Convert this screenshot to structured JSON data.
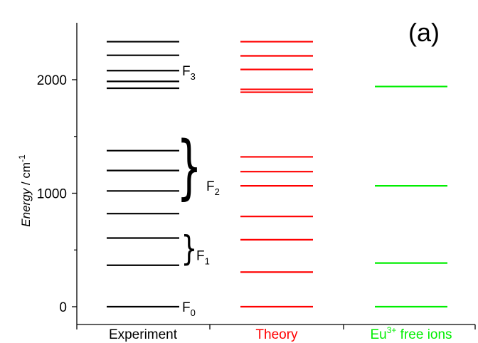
{
  "chart_data": {
    "type": "energy-level",
    "panel_label": "(a)",
    "ylabel": {
      "italic": "Energy",
      "rest": " / cm",
      "sup": "-1"
    },
    "ylim": [
      -80,
      2500
    ],
    "yticks": [
      0,
      1000,
      2000
    ],
    "grid": false,
    "categories": [
      {
        "label": "Experiment",
        "color": "#000000"
      },
      {
        "label": "Theory",
        "color": "#ff0000"
      },
      {
        "label_base": "Eu",
        "label_sup": "3+",
        "label_rest": " free ions",
        "color": "#00ee00"
      }
    ],
    "series": [
      {
        "levels": [
          0,
          365,
          605,
          820,
          1020,
          1200,
          1375,
          1925,
          1985,
          2080,
          2215,
          2335
        ]
      },
      {
        "levels": [
          0,
          305,
          590,
          795,
          1065,
          1190,
          1320,
          1890,
          1915,
          2090,
          2210,
          2335
        ]
      },
      {
        "levels": [
          0,
          385,
          1065,
          1940
        ]
      }
    ],
    "annotations": [
      {
        "base": "F",
        "sub": "0",
        "level": 0,
        "brace": false
      },
      {
        "base": "F",
        "sub": "1",
        "range": [
          365,
          605
        ],
        "brace": true
      },
      {
        "base": "F",
        "sub": "2",
        "range": [
          820,
          1375
        ],
        "brace": true
      },
      {
        "base": "F",
        "sub": "3",
        "level": 2080,
        "brace": false
      }
    ]
  }
}
